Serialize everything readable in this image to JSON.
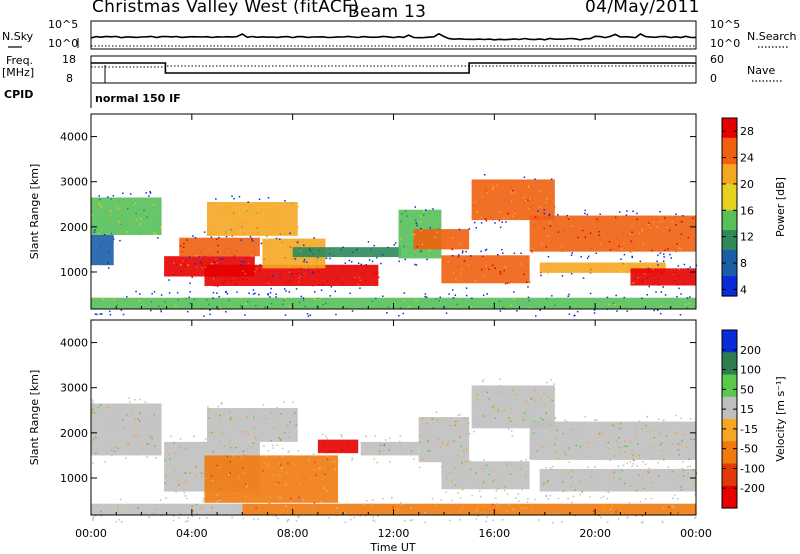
{
  "header": {
    "station": "Christmas Valley West (fitACF)",
    "beam": "Beam 13",
    "date": "04/May/2011"
  },
  "params": {
    "nsky_label": "N.Sky",
    "nsearch_label": "N.Search",
    "freq_label_line1": "Freq.",
    "freq_label_line2": "[MHz]",
    "nave_label": "Nave",
    "cpid_label": "CPID",
    "cpid_value": "normal 150 IF",
    "noise_ticks": [
      "10^5",
      "10^0"
    ],
    "freq_ticks": [
      "18",
      "8"
    ],
    "nave_ticks": [
      "60",
      "0"
    ]
  },
  "chart_data": [
    {
      "type": "heatmap",
      "xlabel": "",
      "ylabel": "Slant Range [km]",
      "x_ticks": [
        "00:00",
        "04:00",
        "08:00",
        "12:00",
        "16:00",
        "20:00",
        "00:00"
      ],
      "y_ticks": [
        1000,
        2000,
        3000,
        4000
      ],
      "x_range_hours": [
        0,
        24
      ],
      "y_range_km": [
        180,
        4500
      ],
      "colorbar": {
        "label": "Power [dB]",
        "ticks": [
          "4",
          "8",
          "12",
          "16",
          "20",
          "24",
          "28"
        ],
        "range": [
          3,
          30
        ]
      },
      "bands": [
        {
          "x": [
            0.0,
            2.8
          ],
          "y": [
            1820,
            2650
          ],
          "value": 16
        },
        {
          "x": [
            0.0,
            0.9
          ],
          "y": [
            1150,
            1820
          ],
          "value": 9
        },
        {
          "x": [
            2.9,
            6.5
          ],
          "y": [
            900,
            1350
          ],
          "value": 27
        },
        {
          "x": [
            3.5,
            6.7
          ],
          "y": [
            1350,
            1760
          ],
          "value": 26
        },
        {
          "x": [
            4.6,
            8.2
          ],
          "y": [
            1800,
            2550
          ],
          "value": 20
        },
        {
          "x": [
            4.5,
            11.4
          ],
          "y": [
            690,
            1160
          ],
          "value": 29
        },
        {
          "x": [
            6.8,
            9.3
          ],
          "y": [
            1080,
            1740
          ],
          "value": 21
        },
        {
          "x": [
            8.0,
            12.3
          ],
          "y": [
            1330,
            1550
          ],
          "value": 10
        },
        {
          "x": [
            12.2,
            13.9
          ],
          "y": [
            1300,
            2380
          ],
          "value": 14
        },
        {
          "x": [
            12.8,
            15.0
          ],
          "y": [
            1500,
            1950
          ],
          "value": 25
        },
        {
          "x": [
            13.9,
            17.4
          ],
          "y": [
            750,
            1370
          ],
          "value": 25
        },
        {
          "x": [
            15.1,
            18.4
          ],
          "y": [
            2150,
            3050
          ],
          "value": 24
        },
        {
          "x": [
            17.4,
            24.0
          ],
          "y": [
            1450,
            2250
          ],
          "value": 25
        },
        {
          "x": [
            17.8,
            22.8
          ],
          "y": [
            980,
            1210
          ],
          "value": 21
        },
        {
          "x": [
            21.4,
            24.0
          ],
          "y": [
            700,
            1080
          ],
          "value": 27
        },
        {
          "x": [
            0.0,
            24.0
          ],
          "y": [
            180,
            430
          ],
          "value": 14
        }
      ]
    },
    {
      "type": "heatmap",
      "xlabel": "Time UT",
      "ylabel": "Slant Range [km]",
      "x_ticks": [
        "00:00",
        "04:00",
        "08:00",
        "12:00",
        "16:00",
        "20:00",
        "00:00"
      ],
      "y_ticks": [
        1000,
        2000,
        3000,
        4000
      ],
      "x_range_hours": [
        0,
        24
      ],
      "y_range_km": [
        180,
        4500
      ],
      "colorbar": {
        "label": "Velocity [m s⁻¹]",
        "ticks": [
          "200",
          "100",
          "50",
          "15",
          "-15",
          "-50",
          "-100",
          "-200"
        ],
        "range": [
          -250,
          250
        ]
      },
      "bands": [
        {
          "x": [
            0.0,
            2.8
          ],
          "y": [
            1500,
            2650
          ],
          "value": 0
        },
        {
          "x": [
            2.9,
            6.7
          ],
          "y": [
            700,
            1800
          ],
          "value": 0
        },
        {
          "x": [
            4.6,
            8.2
          ],
          "y": [
            1800,
            2550
          ],
          "value": 0
        },
        {
          "x": [
            4.5,
            9.8
          ],
          "y": [
            450,
            1500
          ],
          "value": -60
        },
        {
          "x": [
            9.0,
            10.6
          ],
          "y": [
            1550,
            1850
          ],
          "value": -220
        },
        {
          "x": [
            10.7,
            13.0
          ],
          "y": [
            1500,
            1800
          ],
          "value": 30
        },
        {
          "x": [
            13.0,
            15.0
          ],
          "y": [
            1350,
            2350
          ],
          "value": 0
        },
        {
          "x": [
            13.9,
            17.4
          ],
          "y": [
            750,
            1370
          ],
          "value": 0
        },
        {
          "x": [
            15.1,
            18.4
          ],
          "y": [
            2100,
            3050
          ],
          "value": 0
        },
        {
          "x": [
            17.4,
            24.0
          ],
          "y": [
            1400,
            2250
          ],
          "value": 0
        },
        {
          "x": [
            17.8,
            24.0
          ],
          "y": [
            700,
            1200
          ],
          "value": 0
        },
        {
          "x": [
            6.0,
            24.0
          ],
          "y": [
            180,
            430
          ],
          "value": -60
        },
        {
          "x": [
            0.0,
            6.0
          ],
          "y": [
            180,
            430
          ],
          "value": 0
        }
      ]
    }
  ],
  "colors": {
    "power_scale": [
      "#0a2bd8",
      "#1a5ea8",
      "#2e8a5a",
      "#58c05a",
      "#e6d020",
      "#f5a623",
      "#f06010",
      "#e60000"
    ],
    "velocity_scale": [
      "#0a2bd8",
      "#2e7d4f",
      "#5ac84a",
      "#bfbfbf",
      "#f5a623",
      "#f07a10",
      "#e03a0a",
      "#e60000"
    ]
  }
}
